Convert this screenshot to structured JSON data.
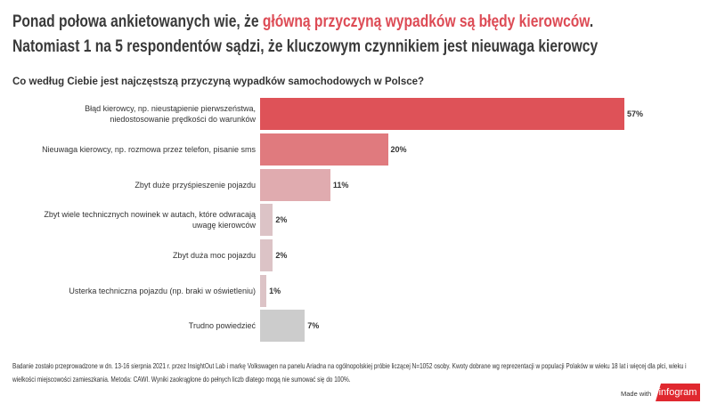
{
  "header": {
    "title_part1": "Ponad połowa ankietowanych wie, że ",
    "title_highlight": "główną przyczyną wypadków są błędy kierowców",
    "title_part2": ".",
    "title_line2": "Natomiast 1 na 5 respondentów sądzi, że kluczowym czynnikiem jest nieuwaga kierowcy"
  },
  "chart_data": {
    "type": "bar",
    "orientation": "horizontal",
    "title": "Co według Ciebie jest najczęstszą przyczyną wypadków samochodowych w Polsce?",
    "categories": [
      "Błąd kierowcy, np. nieustąpienie pierwszeństwa, niedostosowanie prędkości do warunków",
      "Nieuwaga kierowcy, np. rozmowa przez telefon, pisanie sms",
      "Zbyt duże przyśpieszenie pojazdu",
      "Zbyt wiele technicznych nowinek w autach, które odwracają uwagę kierowców",
      "Zbyt duża moc pojazdu",
      "Usterka techniczna pojazdu (np. braki w oświetleniu)",
      "Trudno powiedzieć"
    ],
    "values": [
      57,
      20,
      11,
      2,
      2,
      1,
      7
    ],
    "data_labels": [
      "57%",
      "20%",
      "11%",
      "2%",
      "2%",
      "1%",
      "7%"
    ],
    "colors": [
      "#de5258",
      "#e07a7e",
      "#e0abaf",
      "#dcc3c6",
      "#dcc3c6",
      "#dcc3c6",
      "#cccccc"
    ],
    "xlim": [
      0,
      57
    ],
    "grid": false
  },
  "footer": {
    "note": "Badanie zostało przeprowadzone w dn. 13-16 sierpnia 2021 r. przez InsightOut Lab i markę Volkswagen na panelu Ariadna na ogólnopolskiej próbie liczącej N=1052 osoby. Kwoty dobrane wg reprezentacji w populacji Polaków w wieku 18 lat i więcej dla płci, wieku i wielkości miejscowości zamieszkania. Metoda: CAWI. Wyniki zaokrąglone do pełnych liczb dlatego mogą nie sumować się do 100%.",
    "made_with": "Made with",
    "logo": "infogram"
  }
}
